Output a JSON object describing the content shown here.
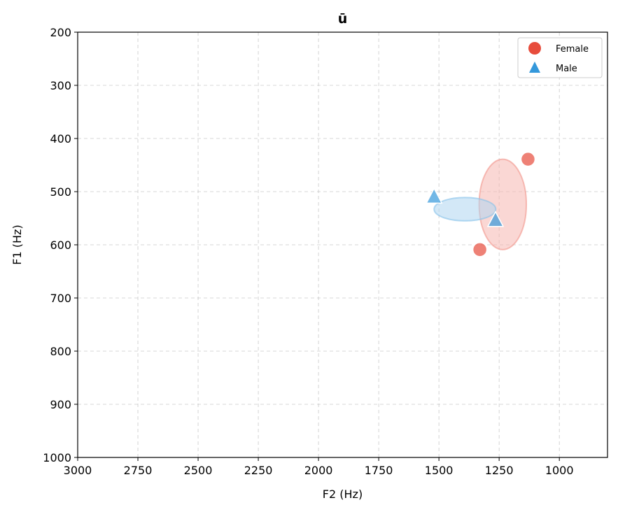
{
  "chart_data": {
    "type": "scatter",
    "title": "ū",
    "xlabel": "F2 (Hz)",
    "ylabel": "F1 (Hz)",
    "xlim": [
      3000,
      800
    ],
    "ylim": [
      1000,
      200
    ],
    "x_inverted": true,
    "y_inverted": true,
    "xticks": [
      3000,
      2750,
      2500,
      2250,
      2000,
      1750,
      1500,
      1250,
      1000
    ],
    "yticks": [
      200,
      300,
      400,
      500,
      600,
      700,
      800,
      900,
      1000
    ],
    "grid": true,
    "legend_position": "top-right",
    "series": [
      {
        "name": "Female",
        "marker": "circle",
        "color": "#e74c3c",
        "points": [
          {
            "x": 1130,
            "y": 439
          },
          {
            "x": 1330,
            "y": 609
          }
        ],
        "ellipse": {
          "cx": 1235,
          "cy": 524,
          "rx": 98,
          "ry": 85,
          "fill": "#f5b7b1",
          "stroke": "#f1948a"
        }
      },
      {
        "name": "Male",
        "marker": "triangle",
        "color": "#3498db",
        "points": [
          {
            "x": 1520,
            "y": 511
          },
          {
            "x": 1265,
            "y": 555
          }
        ],
        "ellipse": {
          "cx": 1392,
          "cy": 533,
          "rx": 128,
          "ry": 22,
          "fill": "#aed6f1",
          "stroke": "#85c1e9"
        }
      }
    ]
  }
}
